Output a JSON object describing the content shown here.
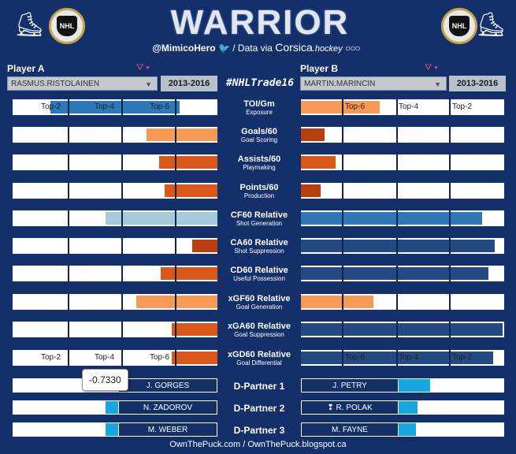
{
  "header": {
    "title": "WARRIOR",
    "handle": "@MimicoHero",
    "data_via": "/ Data via",
    "corsica": "Corsica",
    "hockey": ".hockey",
    "logo_text": "NHL"
  },
  "hashtag": "#NHLTrade16",
  "player_a": {
    "label": "Player A",
    "name": "RASMUS.RISTOLAINEN",
    "season": "2013-2016"
  },
  "player_b": {
    "label": "Player B",
    "name": "MARTIN.MARINCIN",
    "season": "2013-2016"
  },
  "colors": {
    "dark_orange": "#d9581a",
    "light_orange": "#f79a55",
    "rust": "#b8400f",
    "blue": "#2c78b8",
    "light_blue": "#a5c9dc",
    "navy_bar": "#234a82",
    "cyan": "#17a7e0"
  },
  "metrics": [
    {
      "name": "TOI/Gm",
      "sub": "Exposure"
    },
    {
      "name": "Goals/60",
      "sub": "Goal Scoring"
    },
    {
      "name": "Assists/60",
      "sub": "Playmaking"
    },
    {
      "name": "Points/60",
      "sub": "Production"
    },
    {
      "name": "CF60 Relative",
      "sub": "Shot Generation"
    },
    {
      "name": "CA60 Relative",
      "sub": "Shot Suppression"
    },
    {
      "name": "CD60 Relative",
      "sub": "Useful Possession"
    },
    {
      "name": "xGF60 Relative",
      "sub": "Goal Generation"
    },
    {
      "name": "xGA60 Relative",
      "sub": "Goal Suppression"
    },
    {
      "name": "xGD60 Relative",
      "sub": "Goal Differential"
    }
  ],
  "tier_labels": {
    "top2": "Top-2",
    "top4": "Top-4",
    "top6": "Top-6"
  },
  "partners": {
    "labels": [
      "D-Partner 1",
      "D-Partner 2",
      "D-Partner 3"
    ],
    "a": [
      "J. GORGES",
      "N. ZADOROV",
      "M. WEBER"
    ],
    "b": [
      "J. PETRY",
      "R. POLAK",
      "M. FAYNE"
    ],
    "b_marker": "❢"
  },
  "tooltip": "-0.7330",
  "footer": "OwnThePuck.com / OwnThePuck.blogspot.ca"
}
